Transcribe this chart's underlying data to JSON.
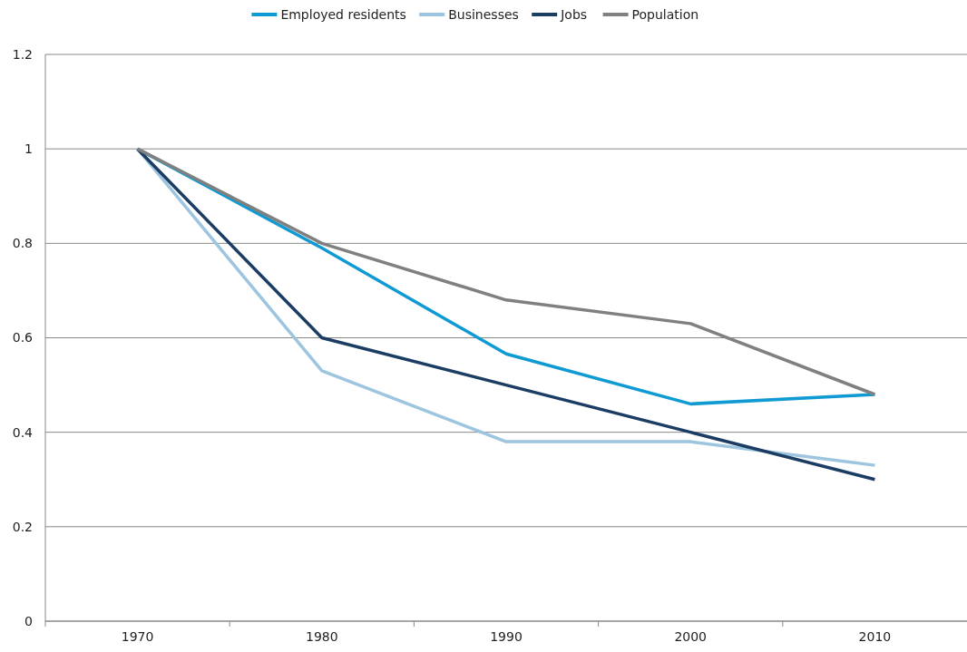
{
  "chart_data": {
    "type": "line",
    "categories": [
      "1970",
      "1980",
      "1990",
      "2000",
      "2010"
    ],
    "series": [
      {
        "name": "Employed residents",
        "color": "#0f9ad3",
        "values": [
          1,
          0.79,
          0.566,
          0.46,
          0.48
        ]
      },
      {
        "name": "Businesses",
        "color": "#9dc5df",
        "values": [
          1,
          0.53,
          0.38,
          0.38,
          0.33
        ]
      },
      {
        "name": "Jobs",
        "color": "#1c3d63",
        "values": [
          1,
          0.6,
          0.5,
          0.4,
          0.3
        ]
      },
      {
        "name": "Population",
        "color": "#808080",
        "values": [
          1,
          0.8,
          0.68,
          0.63,
          0.48
        ]
      }
    ],
    "ylim": [
      0,
      1.2
    ],
    "yticks": [
      0,
      0.2,
      0.4,
      0.6,
      0.8,
      1,
      1.2
    ],
    "grid": "y",
    "legend": "top",
    "marker": "none",
    "line_style": "solid"
  }
}
